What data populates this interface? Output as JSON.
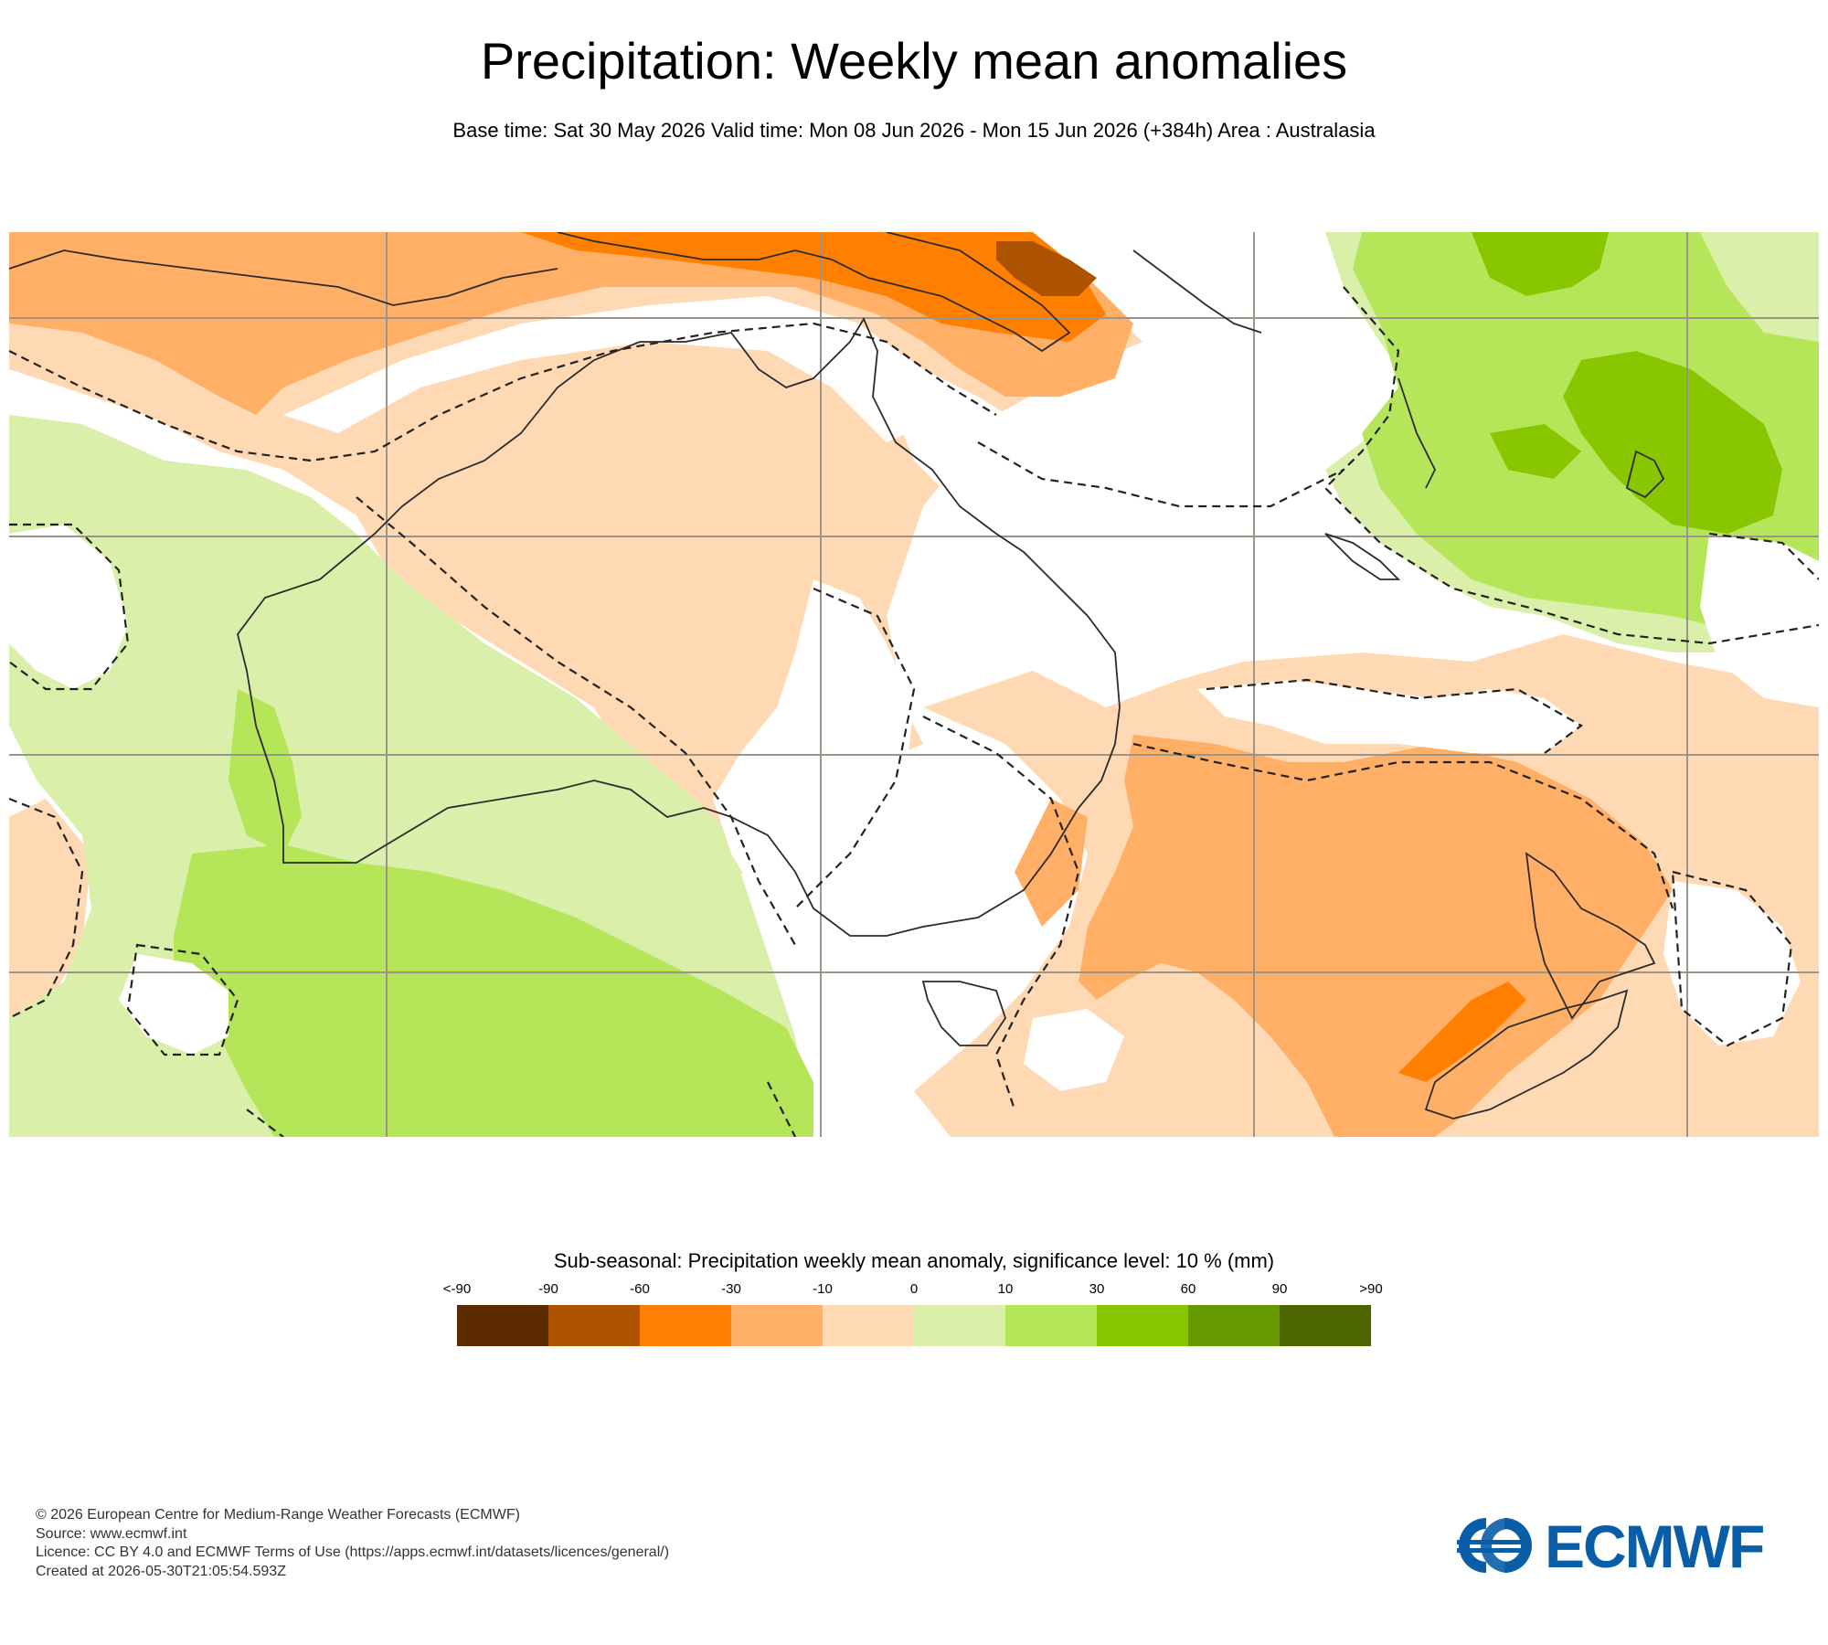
{
  "title": "Precipitation: Weekly mean anomalies",
  "subtitle": "Base time: Sat 30 May 2026 Valid time: Mon 08 Jun 2026 - Mon 15 Jun 2026 (+384h) Area : Australasia",
  "legend": {
    "title": "Sub-seasonal: Precipitation weekly mean anomaly, significance level: 10 % (mm)",
    "ticks": [
      "<-90",
      "-90",
      "-60",
      "-30",
      "-10",
      "0",
      "10",
      "30",
      "60",
      "90",
      ">90"
    ],
    "colors": [
      "#5c2b00",
      "#ad5300",
      "#ff7f00",
      "#ffb066",
      "#ffd9b3",
      "#daf0aa",
      "#b5e65a",
      "#88c700",
      "#669900",
      "#4d6600"
    ]
  },
  "footer": {
    "copyright": "© 2026 European Centre for Medium-Range Weather Forecasts (ECMWF)",
    "source": "Source: www.ecmwf.int",
    "licence": "Licence: CC BY 4.0 and ECMWF Terms of Use (https://apps.ecmwf.int/datasets/licences/general/)",
    "created": "Created at 2026-05-30T21:05:54.593Z"
  },
  "logo_text": "ECMWF",
  "brand_color": "#0a5ea8"
}
